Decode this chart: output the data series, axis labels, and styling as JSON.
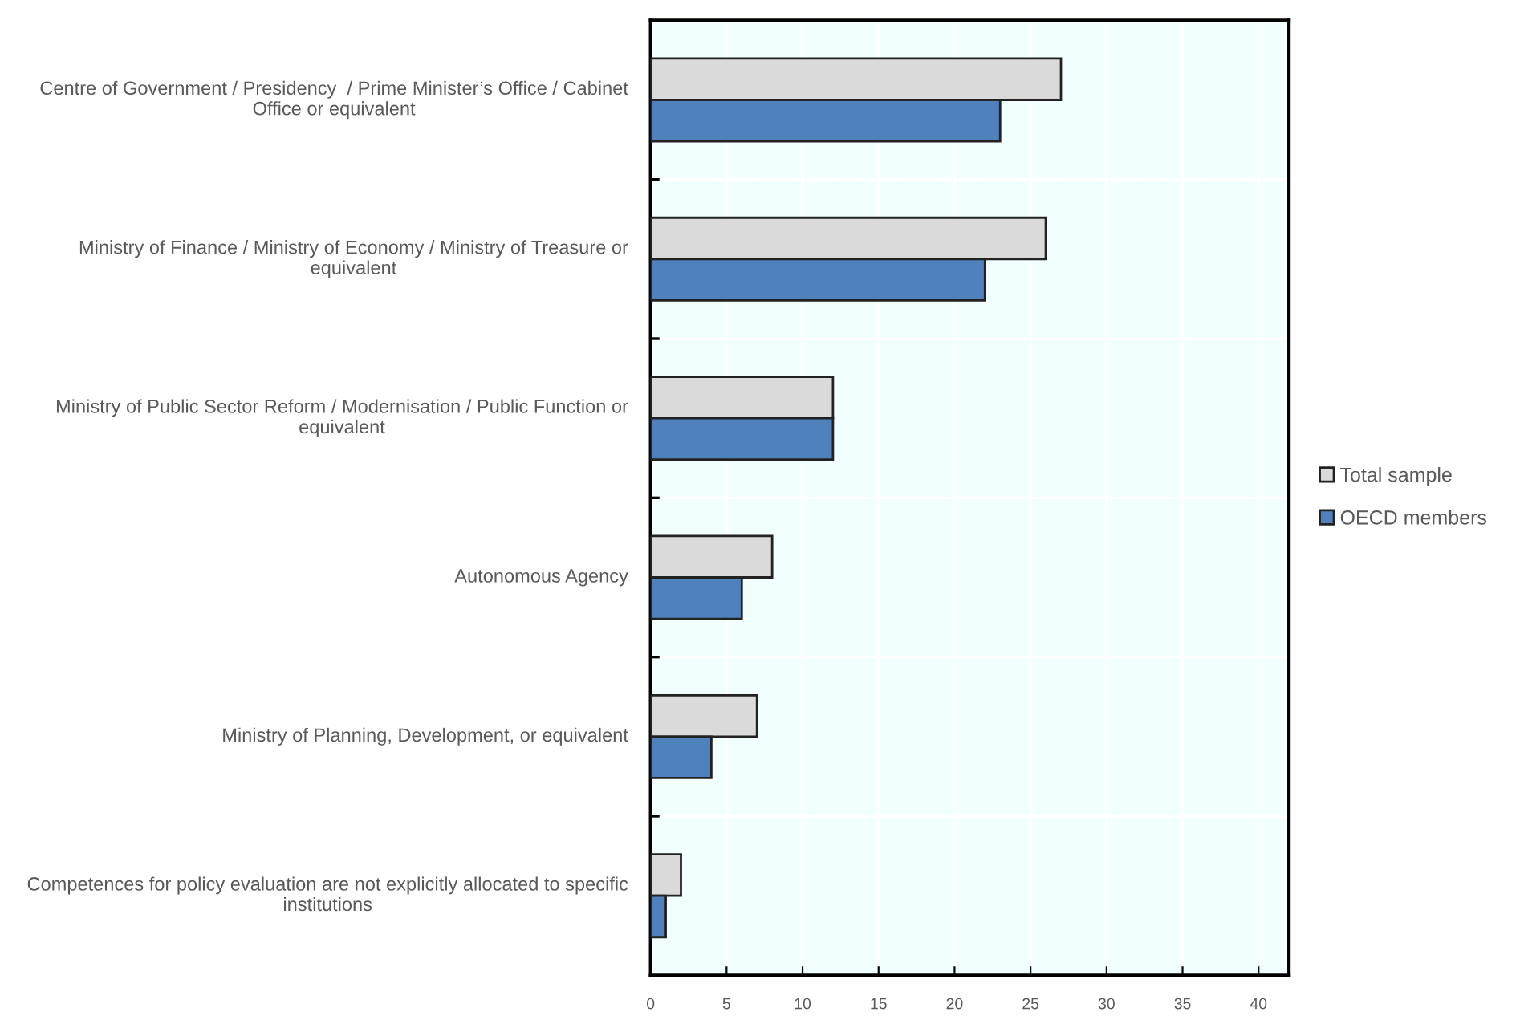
{
  "chart_data": {
    "type": "bar",
    "orientation": "horizontal",
    "categories": [
      "Centre of Government / Presidency  / Prime Minister’s Office / Cabinet Office or equivalent",
      "Ministry of Finance / Ministry of Economy / Ministry of Treasure or equivalent",
      "Ministry of Public Sector Reform / Modernisation / Public Function or equivalent",
      "Autonomous Agency",
      "Ministry of Planning, Development, or equivalent",
      "Competences for policy evaluation are not explicitly allocated to specific institutions"
    ],
    "series": [
      {
        "name": "Total sample",
        "color": "#dadada",
        "values": [
          27,
          26,
          12,
          8,
          7,
          2
        ]
      },
      {
        "name": "OECD members",
        "color": "#4f81bd",
        "values": [
          23,
          22,
          12,
          6,
          4,
          1
        ]
      }
    ],
    "xlim": [
      0,
      42
    ],
    "xticks": [
      0,
      5,
      10,
      15,
      20,
      25,
      30,
      35,
      40
    ],
    "grid": true,
    "legend": "right"
  }
}
